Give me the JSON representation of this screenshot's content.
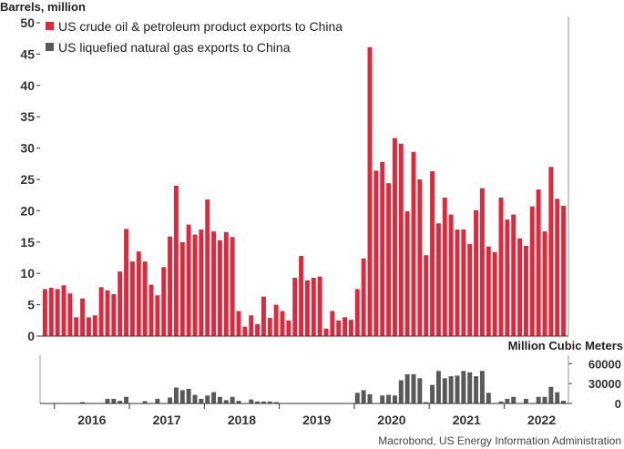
{
  "chart_data": [
    {
      "type": "bar",
      "ylabel": "Barrels, million",
      "ylim": [
        0,
        50
      ],
      "yticks": [
        0,
        5,
        10,
        15,
        20,
        25,
        30,
        35,
        40,
        45,
        50
      ],
      "x_start": "2015-11",
      "x_frequency": "monthly",
      "series": [
        {
          "name": "US crude oil & petroleum product exports to China",
          "color": "#e0283c",
          "values": [
            7.5,
            7.7,
            7.5,
            8.1,
            6.8,
            3.0,
            6.0,
            3.0,
            3.3,
            7.8,
            7.3,
            6.7,
            10.3,
            17.1,
            11.9,
            13.5,
            11.9,
            8.2,
            6.5,
            11.0,
            15.9,
            24.0,
            15.0,
            17.8,
            16.2,
            17.0,
            21.8,
            16.7,
            15.3,
            16.6,
            15.8,
            4.0,
            1.5,
            3.3,
            1.9,
            6.3,
            2.9,
            5.0,
            4.0,
            2.5,
            9.3,
            12.8,
            8.9,
            9.3,
            9.5,
            1.2,
            4.0,
            2.5,
            3.0,
            2.6,
            7.5,
            12.4,
            46.1,
            26.4,
            27.8,
            24.4,
            31.6,
            30.7,
            19.9,
            29.4,
            25.0,
            12.9,
            26.3,
            18.0,
            22.1,
            19.4,
            17.0,
            17.0,
            14.7,
            20.1,
            23.6,
            14.3,
            13.4,
            22.1,
            18.6,
            19.4,
            15.6,
            14.4,
            20.7,
            23.4,
            16.7,
            27.0,
            21.9,
            20.8
          ]
        }
      ],
      "legend_position": "top-left"
    },
    {
      "type": "bar",
      "ylabel": "Million Cubic Meters",
      "ylim": [
        0,
        70000
      ],
      "yticks": [
        0,
        30000,
        60000
      ],
      "ytick_labels": [
        "0",
        "30000",
        "60000"
      ],
      "x_start": "2015-11",
      "x_frequency": "monthly",
      "xticks": [
        "2016",
        "2017",
        "2018",
        "2019",
        "2020",
        "2021",
        "2022"
      ],
      "series": [
        {
          "name": "US liquefied natural gas exports to China",
          "color": "#595959",
          "values": [
            0,
            0,
            0,
            0,
            0,
            0,
            2000,
            0,
            0,
            0,
            7000,
            7000,
            4000,
            10000,
            0,
            0,
            3500,
            0,
            7000,
            0,
            9000,
            24000,
            20000,
            22000,
            13000,
            7000,
            12000,
            17000,
            10000,
            5000,
            10000,
            4000,
            0,
            6000,
            3000,
            3000,
            3000,
            2000,
            0,
            0,
            0,
            0,
            0,
            0,
            0,
            0,
            0,
            0,
            0,
            0,
            16000,
            20000,
            14000,
            0,
            12000,
            13000,
            12000,
            35000,
            44000,
            44000,
            38000,
            2000,
            28000,
            49000,
            38000,
            41000,
            42000,
            49000,
            47000,
            41000,
            49000,
            16000,
            0,
            3000,
            7000,
            10000,
            0,
            7000,
            0,
            10000,
            10000,
            25000,
            17000,
            4000
          ]
        }
      ],
      "legend_position": "top-left"
    }
  ],
  "source": "Macrobond, US Energy Information Administration"
}
